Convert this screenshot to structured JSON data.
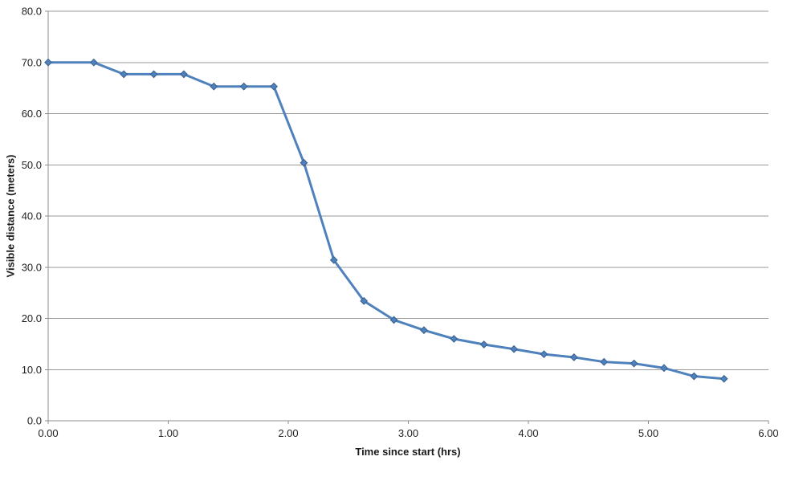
{
  "chart_data": {
    "type": "line",
    "title": "",
    "xlabel": "Time since start (hrs)",
    "ylabel": "Visible distance (meters)",
    "series": [
      {
        "name": "Visible distance",
        "x": [
          0.0,
          0.38,
          0.63,
          0.88,
          1.13,
          1.38,
          1.63,
          1.88,
          2.13,
          2.38,
          2.63,
          2.88,
          3.13,
          3.38,
          3.63,
          3.88,
          4.13,
          4.38,
          4.63,
          4.88,
          5.13,
          5.38,
          5.63
        ],
        "y": [
          70.0,
          70.0,
          67.7,
          67.7,
          67.7,
          65.3,
          65.3,
          65.3,
          50.4,
          31.4,
          23.4,
          19.7,
          17.7,
          16.0,
          14.9,
          14.0,
          13.0,
          12.4,
          11.5,
          11.2,
          10.3,
          8.7,
          8.2
        ]
      }
    ],
    "xlim": [
      0,
      6
    ],
    "ylim": [
      0,
      80
    ],
    "x_tick_values": [
      0,
      1,
      2,
      3,
      4,
      5,
      6
    ],
    "x_tick_labels": [
      "0.00",
      "1.00",
      "2.00",
      "3.00",
      "4.00",
      "5.00",
      "6.00"
    ],
    "y_tick_values": [
      0,
      10,
      20,
      30,
      40,
      50,
      60,
      70,
      80
    ],
    "y_tick_labels": [
      "0.0",
      "10.0",
      "20.0",
      "30.0",
      "40.0",
      "50.0",
      "60.0",
      "70.0",
      "80.0"
    ],
    "grid": "horizontal-major",
    "legend": "none",
    "marker": "diamond",
    "colors": {
      "line": "#4F81BD",
      "marker_fill": "#4F81BD",
      "marker_border": "#38618F",
      "gridline": "#999999",
      "axis": "#8C8C8C",
      "tick_text": "#1f1f1f",
      "background": "#ffffff"
    }
  }
}
